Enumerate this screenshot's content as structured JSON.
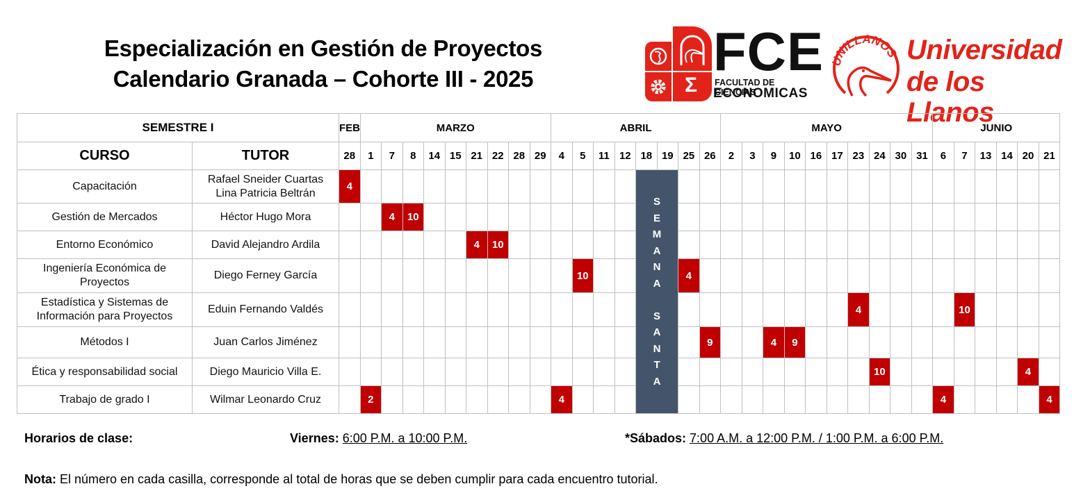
{
  "header": {
    "title_line1": "Especialización en Gestión de Proyectos",
    "title_line2": "Calendario Granada – Cohorte III - 2025"
  },
  "logos": {
    "fce": {
      "big": "FCE",
      "line1": "FACULTAD DE CIENCIAS",
      "line2": "ECONOMICAS",
      "color": "#e2231a",
      "tile_icons": [
        "globe-icon",
        "heron-icon",
        "gear-icon",
        "sigma-icon"
      ],
      "sigma": "Σ"
    },
    "unillanos": {
      "ring_text": "UNILLANOS",
      "line1": "Universidad",
      "line2": "de los Llanos",
      "color": "#e2231a"
    }
  },
  "table": {
    "semester_label": "SEMESTRE I",
    "col_curso": "CURSO",
    "col_tutor": "TUTOR",
    "months": [
      {
        "label": "FEB",
        "span": 1
      },
      {
        "label": "MARZO",
        "span": 9
      },
      {
        "label": "ABRIL",
        "span": 8
      },
      {
        "label": "MAYO",
        "span": 10
      },
      {
        "label": "JUNIO",
        "span": 6
      }
    ],
    "dates": [
      "28",
      "1",
      "7",
      "8",
      "14",
      "15",
      "21",
      "22",
      "28",
      "29",
      "4",
      "5",
      "11",
      "12",
      "18",
      "19",
      "25",
      "26",
      "2",
      "3",
      "9",
      "10",
      "16",
      "17",
      "23",
      "24",
      "30",
      "31",
      "6",
      "7",
      "13",
      "14",
      "20",
      "21"
    ],
    "holiday": {
      "label": "SEMANA SANTA",
      "letters": [
        "S",
        "E",
        "M",
        "A",
        "N",
        "A",
        "",
        "S",
        "A",
        "N",
        "T",
        "A"
      ],
      "columns": [
        14,
        15
      ],
      "color": "#44546a"
    },
    "hit_color": "#c00000",
    "rows": [
      {
        "curso": "Capacitación",
        "tutor": "Rafael Sneider Cuartas\nLina Patricia Beltrán",
        "cells": {
          "0": "4"
        }
      },
      {
        "curso": "Gestión de Mercados",
        "tutor": "Héctor Hugo Mora",
        "cells": {
          "2": "4",
          "3": "10"
        }
      },
      {
        "curso": "Entorno Económico",
        "tutor": "David Alejandro Ardila",
        "cells": {
          "6": "4",
          "7": "10"
        }
      },
      {
        "curso": "Ingeniería Económica de Proyectos",
        "tutor": "Diego Ferney García",
        "cells": {
          "11": "10",
          "16": "4"
        }
      },
      {
        "curso": "Estadística y Sistemas de Información para Proyectos",
        "tutor": "Eduin Fernando Valdés",
        "cells": {
          "24": "4",
          "29": "10"
        }
      },
      {
        "curso": "Métodos I",
        "tutor": "Juan Carlos Jiménez",
        "cells": {
          "17": "9",
          "20": "4",
          "21": "9"
        }
      },
      {
        "curso": "Ética y responsabilidad social",
        "tutor": "Diego Mauricio Villa E.",
        "cells": {
          "25": "10",
          "32": "4"
        }
      },
      {
        "curso": "Trabajo de grado I",
        "tutor": "Wilmar Leonardo Cruz",
        "cells": {
          "1": "2",
          "10": "4",
          "28": "4",
          "33": "4"
        }
      }
    ]
  },
  "footer": {
    "schedule_label": "Horarios de clase:",
    "friday_label": "Viernes:",
    "friday_hours": "6:00 P.M. a 10:00 P.M.",
    "saturday_label": "*Sábados:",
    "saturday_hours": "7:00 A.M. a 12:00 P.M. / 1:00 P.M. a 6:00 P.M.",
    "note_label": "Nota:",
    "note_text": " El número en cada casilla, corresponde al total de horas que se deben cumplir para cada encuentro tutorial."
  }
}
